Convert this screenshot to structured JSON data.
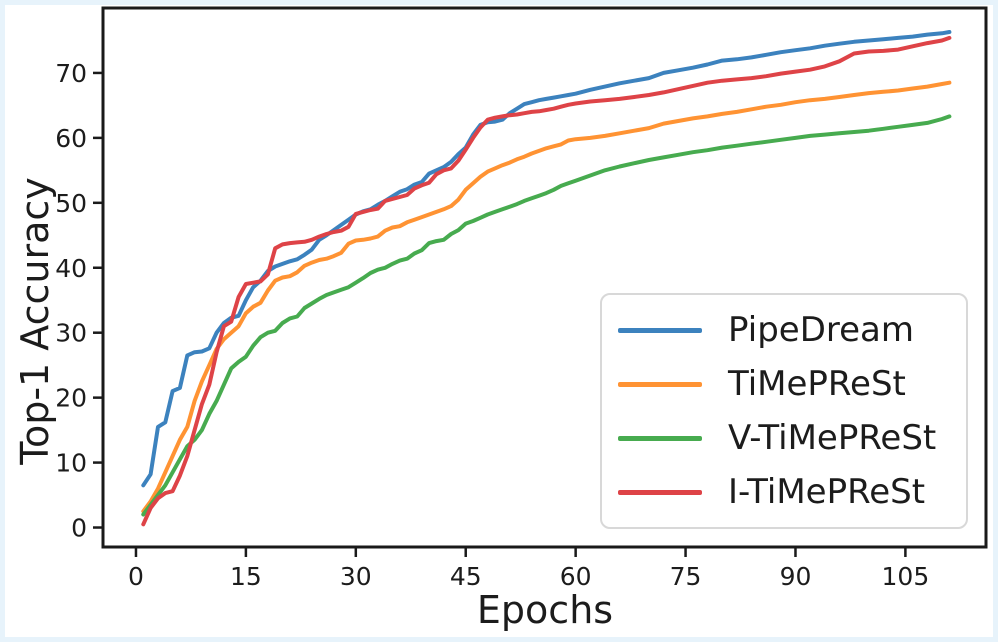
{
  "chart_data": {
    "type": "line",
    "title": "",
    "xlabel": "Epochs",
    "ylabel": "Top-1 Accuracy",
    "xlim": [
      -4.5,
      116
    ],
    "ylim": [
      -3,
      80
    ],
    "x_ticks": [
      0,
      15,
      30,
      45,
      60,
      75,
      90,
      105
    ],
    "y_ticks": [
      0,
      10,
      20,
      30,
      40,
      50,
      60,
      70
    ],
    "grid": false,
    "legend_position": "lower right",
    "epochs": [
      1,
      2,
      3,
      4,
      5,
      6,
      7,
      8,
      9,
      10,
      11,
      12,
      13,
      14,
      15,
      16,
      17,
      18,
      19,
      20,
      21,
      22,
      23,
      24,
      25,
      26,
      27,
      28,
      29,
      30,
      31,
      32,
      33,
      34,
      35,
      36,
      37,
      38,
      39,
      40,
      41,
      42,
      43,
      44,
      45,
      46,
      47,
      48,
      49,
      50,
      51,
      52,
      53,
      54,
      55,
      56,
      57,
      58,
      59,
      60,
      62,
      64,
      66,
      68,
      70,
      72,
      74,
      76,
      78,
      80,
      82,
      84,
      86,
      88,
      90,
      92,
      94,
      96,
      98,
      100,
      102,
      104,
      106,
      108,
      110,
      111
    ],
    "series": [
      {
        "name": "PipeDream",
        "color": "#3c82be",
        "values": [
          6.5,
          8.2,
          15.5,
          16.2,
          21.0,
          21.5,
          26.5,
          27.0,
          27.1,
          27.6,
          30.0,
          31.5,
          32.3,
          32.6,
          35.0,
          37.0,
          38.0,
          39.5,
          40.2,
          40.6,
          41.0,
          41.3,
          42.0,
          42.8,
          44.3,
          45.0,
          45.8,
          46.6,
          47.4,
          48.2,
          48.7,
          49.0,
          49.7,
          50.3,
          51.0,
          51.7,
          52.1,
          52.8,
          53.2,
          54.5,
          55.0,
          55.5,
          56.3,
          57.5,
          58.5,
          60.5,
          62.0,
          62.4,
          62.5,
          62.8,
          63.8,
          64.5,
          65.2,
          65.5,
          65.8,
          66.0,
          66.2,
          66.4,
          66.6,
          66.8,
          67.4,
          67.9,
          68.4,
          68.8,
          69.2,
          70.0,
          70.4,
          70.8,
          71.3,
          71.9,
          72.1,
          72.4,
          72.8,
          73.2,
          73.5,
          73.8,
          74.2,
          74.5,
          74.8,
          75.0,
          75.2,
          75.4,
          75.6,
          75.9,
          76.1,
          76.3
        ]
      },
      {
        "name": "TiMePReSt",
        "color": "#ff9333",
        "values": [
          2.5,
          4.0,
          6.0,
          8.5,
          11.0,
          13.5,
          15.5,
          19.5,
          22.5,
          25.0,
          27.5,
          29.0,
          30.0,
          31.0,
          33.0,
          34.0,
          34.6,
          36.5,
          38.0,
          38.5,
          38.7,
          39.3,
          40.3,
          40.8,
          41.2,
          41.4,
          41.8,
          42.3,
          43.7,
          44.2,
          44.3,
          44.5,
          44.8,
          45.7,
          46.2,
          46.4,
          47.0,
          47.4,
          47.8,
          48.2,
          48.6,
          49.0,
          49.5,
          50.5,
          52.0,
          53.0,
          54.0,
          54.8,
          55.3,
          55.8,
          56.2,
          56.7,
          57.1,
          57.6,
          58.0,
          58.4,
          58.7,
          59.0,
          59.6,
          59.8,
          60.0,
          60.3,
          60.7,
          61.1,
          61.5,
          62.2,
          62.6,
          63.0,
          63.3,
          63.7,
          64.0,
          64.4,
          64.8,
          65.1,
          65.5,
          65.8,
          66.0,
          66.3,
          66.6,
          66.9,
          67.1,
          67.3,
          67.6,
          67.9,
          68.3,
          68.5
        ]
      },
      {
        "name": "V-TiMePReSt",
        "color": "#47ab4f",
        "values": [
          2.0,
          3.5,
          5.0,
          6.5,
          8.5,
          10.5,
          12.5,
          13.5,
          15.0,
          17.5,
          19.5,
          22.0,
          24.5,
          25.5,
          26.3,
          28.0,
          29.3,
          30.0,
          30.3,
          31.5,
          32.2,
          32.5,
          33.8,
          34.5,
          35.2,
          35.8,
          36.2,
          36.6,
          37.0,
          37.7,
          38.4,
          39.2,
          39.7,
          40.0,
          40.6,
          41.1,
          41.4,
          42.2,
          42.7,
          43.8,
          44.1,
          44.3,
          45.2,
          45.8,
          46.8,
          47.2,
          47.7,
          48.2,
          48.6,
          49.0,
          49.4,
          49.8,
          50.3,
          50.7,
          51.1,
          51.5,
          52.0,
          52.6,
          53.0,
          53.4,
          54.2,
          55.0,
          55.6,
          56.1,
          56.6,
          57.0,
          57.4,
          57.8,
          58.1,
          58.5,
          58.8,
          59.1,
          59.4,
          59.7,
          60.0,
          60.3,
          60.5,
          60.7,
          60.9,
          61.1,
          61.4,
          61.7,
          62.0,
          62.3,
          62.9,
          63.3
        ]
      },
      {
        "name": "I-TiMePReSt",
        "color": "#de4347",
        "values": [
          0.5,
          3.0,
          4.5,
          5.3,
          5.6,
          8.0,
          11.0,
          15.0,
          19.0,
          22.0,
          27.0,
          31.0,
          31.7,
          35.5,
          37.5,
          37.7,
          37.9,
          39.0,
          43.0,
          43.6,
          43.8,
          43.9,
          44.0,
          44.3,
          44.8,
          45.2,
          45.5,
          45.7,
          46.3,
          48.3,
          48.6,
          48.9,
          49.1,
          50.3,
          50.6,
          50.9,
          51.2,
          52.2,
          52.7,
          53.1,
          54.4,
          55.0,
          55.3,
          56.5,
          58.2,
          60.0,
          61.6,
          62.8,
          63.1,
          63.3,
          63.5,
          63.6,
          63.8,
          64.0,
          64.1,
          64.3,
          64.5,
          64.8,
          65.1,
          65.3,
          65.6,
          65.8,
          66.0,
          66.3,
          66.6,
          67.0,
          67.5,
          68.0,
          68.5,
          68.8,
          69.0,
          69.2,
          69.5,
          69.9,
          70.2,
          70.5,
          71.0,
          71.8,
          73.0,
          73.3,
          73.4,
          73.6,
          74.1,
          74.6,
          75.0,
          75.4
        ]
      }
    ]
  },
  "colors": {
    "axis": "#1a1a1a",
    "text": "#1c1c1c",
    "legend_border": "#d8d8d8",
    "frame": "#e7f3fb",
    "background": "#ffffff"
  }
}
